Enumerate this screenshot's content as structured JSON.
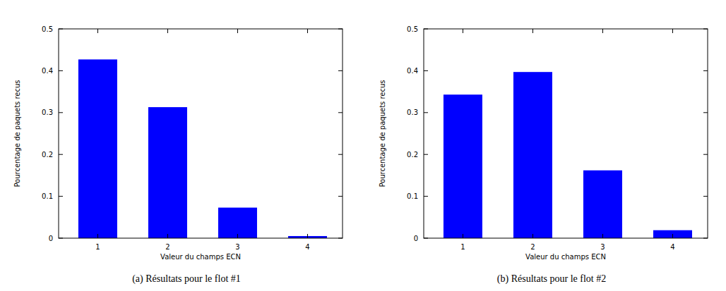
{
  "chart_data": [
    {
      "type": "bar",
      "title": "(a) Résultats pour le flot #1",
      "x_label": "Valeur du champs ECN",
      "y_label": "Pourcentage de paquets recus",
      "categories": [
        "1",
        "2",
        "3",
        "4"
      ],
      "values": [
        0.427,
        0.313,
        0.073,
        0.005
      ],
      "color": "#0000ff",
      "ylim": [
        0,
        0.5
      ],
      "yticks": [
        0,
        0.1,
        0.2,
        0.3,
        0.4,
        0.5
      ],
      "grid": false
    },
    {
      "type": "bar",
      "title": "(b) Résultats pour le flot #2",
      "x_label": "Valeur du champs ECN",
      "y_label": "Pourcentage de paquets recus",
      "categories": [
        "1",
        "2",
        "3",
        "4"
      ],
      "values": [
        0.343,
        0.397,
        0.162,
        0.019
      ],
      "color": "#0000ff",
      "ylim": [
        0,
        0.5
      ],
      "yticks": [
        0,
        0.1,
        0.2,
        0.3,
        0.4,
        0.5
      ],
      "grid": false
    }
  ]
}
